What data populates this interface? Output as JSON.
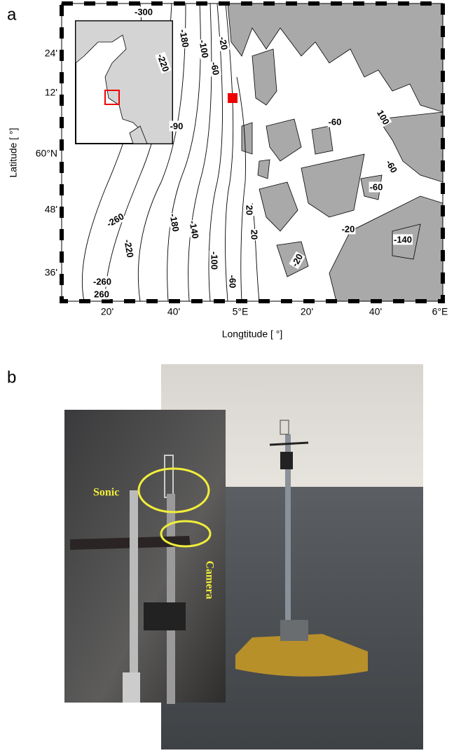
{
  "panel_a": {
    "label": "a",
    "x_axis": {
      "title": "Longtitude [ °]",
      "ticks": [
        "20'",
        "40'",
        "5°E",
        "20'",
        "40'",
        "6°E"
      ]
    },
    "y_axis": {
      "title": "Latitude [ °]",
      "ticks": [
        "24'",
        "12'",
        "60°N",
        "48'",
        "36'"
      ]
    },
    "contour_labels": [
      "-300",
      "-180",
      "-100",
      "-20",
      "-60",
      "-220",
      "-90",
      "-260",
      "-180",
      "-140",
      "-100",
      "-60",
      "20",
      "20",
      "-220",
      "-260",
      "260",
      "-60",
      "100",
      "-60",
      "-60",
      "-20",
      "-20",
      "-140"
    ]
  },
  "panel_b": {
    "label": "b",
    "annotations": [
      "Sonic",
      "Camera"
    ]
  }
}
